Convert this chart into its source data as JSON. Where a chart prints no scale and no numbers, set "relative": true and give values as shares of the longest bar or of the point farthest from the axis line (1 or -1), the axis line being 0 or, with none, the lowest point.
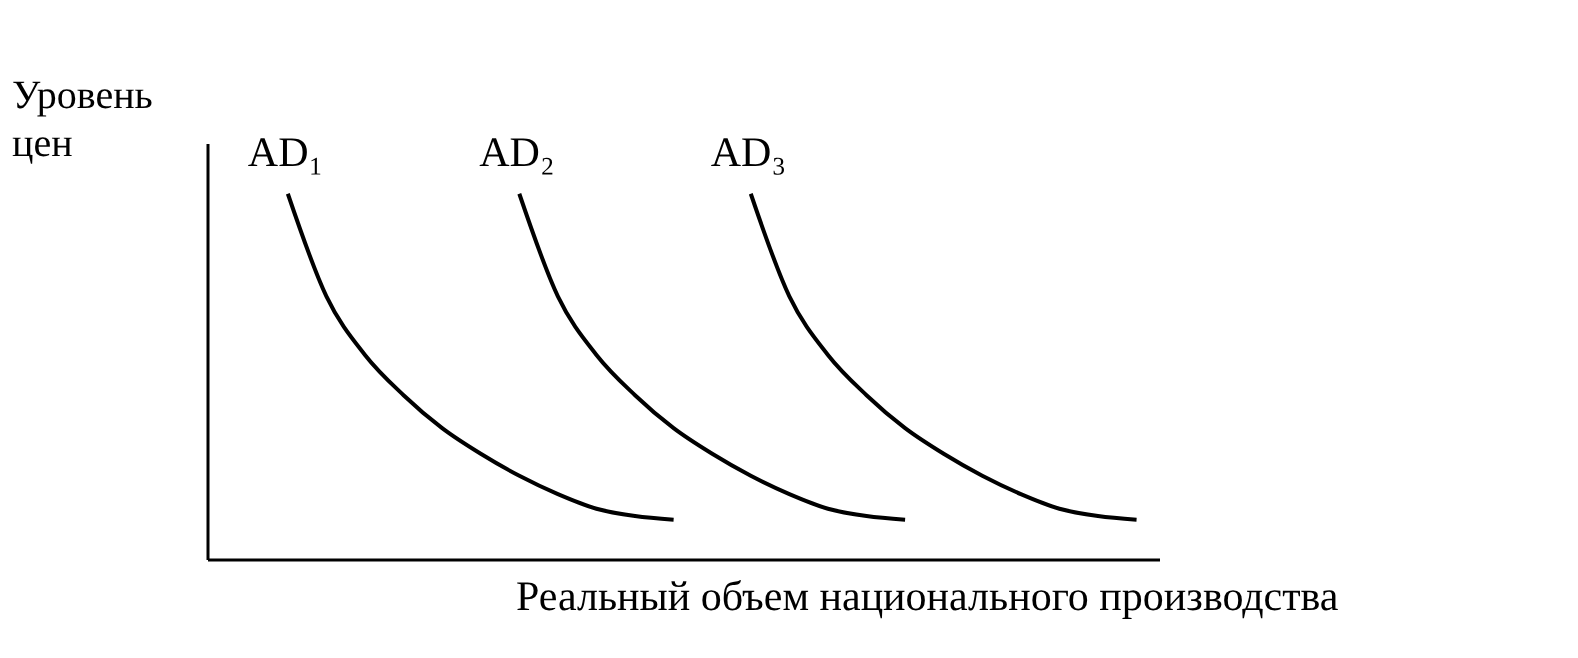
{
  "chart_data": {
    "type": "line",
    "relative": true,
    "marker": "none",
    "xlabel": "Реальный объем национального производства",
    "ylabel": "Уровень цен",
    "categories": [
      null,
      null,
      null,
      null,
      null,
      null,
      null,
      null,
      null,
      null,
      null,
      null,
      null,
      null,
      null,
      null,
      null,
      null,
      null,
      null,
      null,
      null,
      null
    ],
    "series": [
      {
        "name": "AD₁",
        "color": "#000000",
        "values": [
          1,
          0.72,
          0.56,
          0.45,
          0.36,
          0.29,
          0.23,
          0.18,
          0.14,
          0.12,
          0.11,
          null,
          null,
          null,
          null,
          null,
          null,
          null,
          null,
          null,
          null,
          null,
          null
        ]
      },
      {
        "name": "AD₂",
        "color": "#000000",
        "values": [
          null,
          null,
          null,
          null,
          null,
          null,
          1,
          0.72,
          0.56,
          0.45,
          0.36,
          0.29,
          0.23,
          0.18,
          0.14,
          0.12,
          0.11,
          null,
          null,
          null,
          null,
          null,
          null
        ]
      },
      {
        "name": "AD₃",
        "color": "#000000",
        "values": [
          null,
          null,
          null,
          null,
          null,
          null,
          null,
          null,
          null,
          null,
          null,
          null,
          1,
          0.72,
          0.56,
          0.45,
          0.36,
          0.29,
          0.23,
          0.18,
          0.14,
          0.12,
          0.11
        ]
      }
    ]
  }
}
